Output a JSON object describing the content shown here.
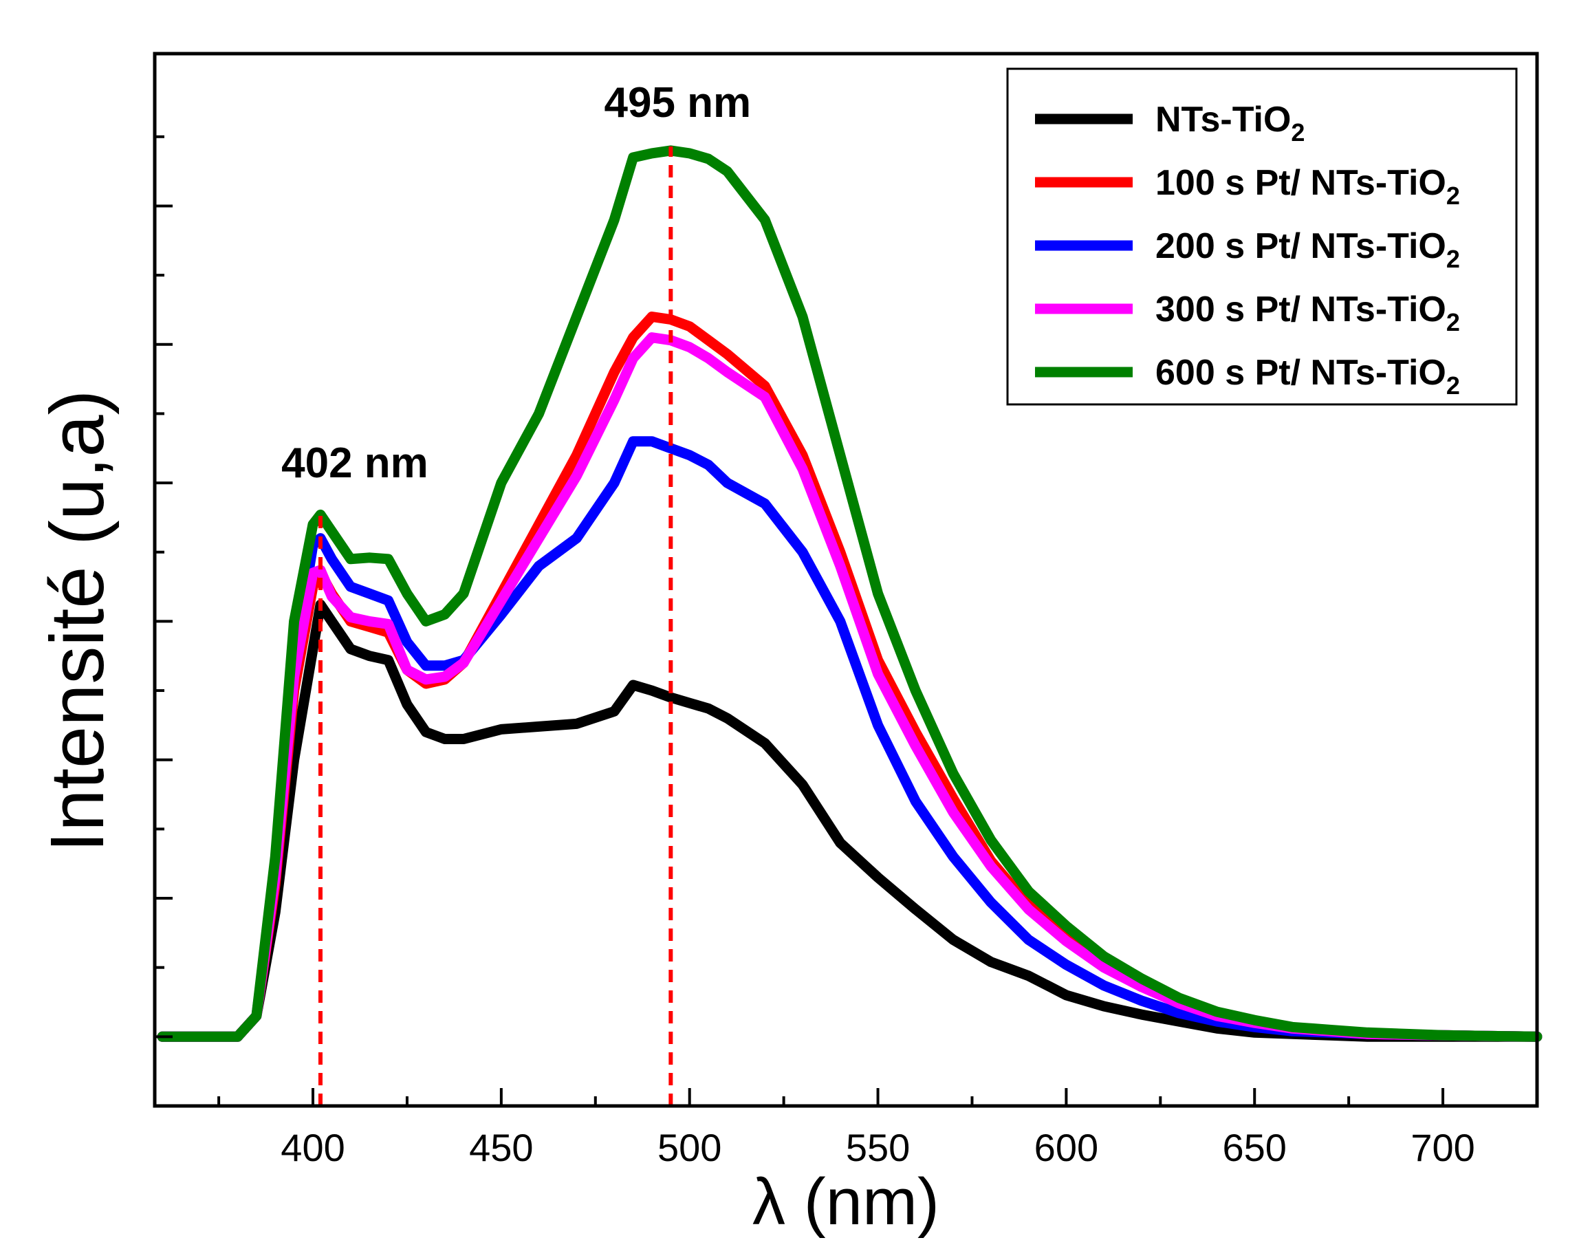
{
  "chart_data": {
    "type": "line",
    "xlabel": "λ (nm)",
    "ylabel": "Intensité (u,a)",
    "xlim": [
      358,
      725
    ],
    "ylim": [
      -0.05,
      0.71
    ],
    "xticks": [
      400,
      450,
      500,
      550,
      600,
      650,
      700
    ],
    "yticks_labeled": false,
    "legend_position": "top-right",
    "annotations": [
      {
        "text": "402 nm",
        "x": 402,
        "color": "#ff0000",
        "style": "dashed"
      },
      {
        "text": "495 nm",
        "x": 495,
        "color": "#ff0000",
        "style": "dashed"
      }
    ],
    "x": [
      360,
      380,
      385,
      390,
      395,
      400,
      402,
      405,
      410,
      415,
      420,
      425,
      430,
      435,
      440,
      450,
      460,
      470,
      480,
      485,
      490,
      495,
      500,
      505,
      510,
      520,
      530,
      540,
      550,
      560,
      570,
      580,
      590,
      600,
      610,
      620,
      630,
      640,
      650,
      660,
      670,
      680,
      700,
      725
    ],
    "series": [
      {
        "name": "NTs-TiO",
        "subscript": "2",
        "color": "#000000",
        "values": [
          0.0,
          0.0,
          0.015,
          0.09,
          0.2,
          0.28,
          0.312,
          0.3,
          0.28,
          0.275,
          0.272,
          0.24,
          0.22,
          0.215,
          0.215,
          0.222,
          0.224,
          0.226,
          0.235,
          0.254,
          0.25,
          0.245,
          0.241,
          0.237,
          0.23,
          0.212,
          0.182,
          0.14,
          0.115,
          0.092,
          0.07,
          0.054,
          0.044,
          0.03,
          0.022,
          0.016,
          0.011,
          0.006,
          0.003,
          0.002,
          0.001,
          0.0,
          0.0,
          0.0
        ]
      },
      {
        "name": "100 s Pt/ NTs-TiO",
        "subscript": "2",
        "color": "#ff0000",
        "values": [
          0.0,
          0.0,
          0.015,
          0.11,
          0.25,
          0.325,
          0.335,
          0.32,
          0.3,
          0.296,
          0.292,
          0.265,
          0.255,
          0.258,
          0.27,
          0.32,
          0.37,
          0.42,
          0.48,
          0.505,
          0.52,
          0.518,
          0.513,
          0.503,
          0.493,
          0.47,
          0.42,
          0.35,
          0.272,
          0.22,
          0.172,
          0.127,
          0.095,
          0.072,
          0.052,
          0.037,
          0.024,
          0.015,
          0.01,
          0.006,
          0.004,
          0.002,
          0.001,
          0.0
        ]
      },
      {
        "name": "200 s Pt/ NTs-TiO",
        "subscript": "2",
        "color": "#0000ff",
        "values": [
          0.0,
          0.0,
          0.015,
          0.12,
          0.27,
          0.355,
          0.36,
          0.345,
          0.325,
          0.32,
          0.315,
          0.285,
          0.268,
          0.268,
          0.272,
          0.305,
          0.34,
          0.36,
          0.4,
          0.43,
          0.43,
          0.425,
          0.42,
          0.413,
          0.4,
          0.385,
          0.35,
          0.3,
          0.225,
          0.17,
          0.13,
          0.097,
          0.07,
          0.052,
          0.037,
          0.026,
          0.017,
          0.011,
          0.007,
          0.004,
          0.003,
          0.002,
          0.001,
          0.0
        ]
      },
      {
        "name": "300 s Pt/ NTs-TiO",
        "subscript": "2",
        "color": "#ff00ff",
        "values": [
          0.0,
          0.0,
          0.015,
          0.115,
          0.26,
          0.335,
          0.337,
          0.318,
          0.303,
          0.3,
          0.298,
          0.265,
          0.258,
          0.26,
          0.27,
          0.315,
          0.36,
          0.405,
          0.46,
          0.49,
          0.505,
          0.503,
          0.498,
          0.49,
          0.48,
          0.462,
          0.41,
          0.34,
          0.262,
          0.21,
          0.162,
          0.123,
          0.092,
          0.069,
          0.05,
          0.036,
          0.024,
          0.015,
          0.01,
          0.006,
          0.004,
          0.002,
          0.001,
          0.0
        ]
      },
      {
        "name": "600 s Pt/ NTs-TiO",
        "subscript": "2",
        "color": "#008000",
        "values": [
          0.0,
          0.0,
          0.015,
          0.13,
          0.3,
          0.37,
          0.377,
          0.365,
          0.345,
          0.346,
          0.345,
          0.32,
          0.3,
          0.305,
          0.32,
          0.4,
          0.45,
          0.52,
          0.59,
          0.635,
          0.638,
          0.64,
          0.638,
          0.634,
          0.625,
          0.59,
          0.52,
          0.42,
          0.32,
          0.25,
          0.19,
          0.142,
          0.105,
          0.08,
          0.058,
          0.042,
          0.028,
          0.018,
          0.012,
          0.007,
          0.005,
          0.003,
          0.001,
          0.0
        ]
      }
    ]
  }
}
